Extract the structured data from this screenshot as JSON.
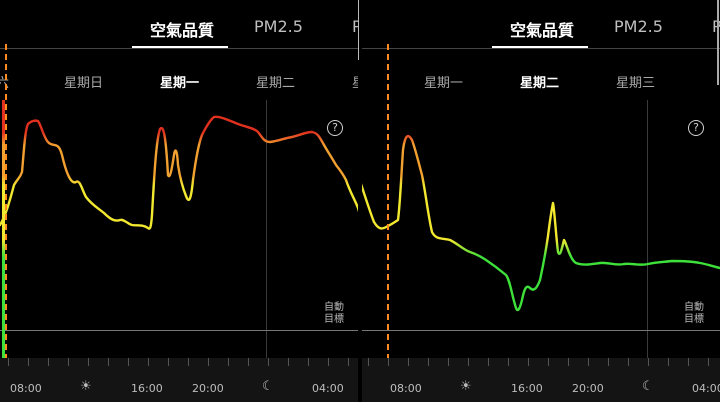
{
  "left": {
    "tabs": [
      {
        "label": "空氣品質",
        "active": true
      },
      {
        "label": "PM2.5",
        "active": false
      },
      {
        "label": "P",
        "active": false
      }
    ],
    "days": [
      {
        "label": "六",
        "active": false
      },
      {
        "label": "星期日",
        "active": false
      },
      {
        "label": "星期一",
        "active": true
      },
      {
        "label": "星期二",
        "active": false
      },
      {
        "label": "星",
        "active": false
      }
    ],
    "auto_target": [
      "自動",
      "目標"
    ],
    "help": "?",
    "axis": {
      "times": [
        "08:00",
        "16:00",
        "20:00",
        "04:00"
      ],
      "sun_icon": "☀",
      "moon_icon": "☾"
    }
  },
  "right": {
    "tabs": [
      {
        "label": "空氣品質",
        "active": true
      },
      {
        "label": "PM2.5",
        "active": false
      },
      {
        "label": "P",
        "active": false
      }
    ],
    "days": [
      {
        "label": "星期一",
        "active": false
      },
      {
        "label": "星期二",
        "active": true
      },
      {
        "label": "星期三",
        "active": false
      }
    ],
    "auto_target": [
      "自動",
      "目標"
    ],
    "help": "?",
    "axis": {
      "times": [
        "08:00",
        "16:00",
        "20:00",
        "04:00"
      ],
      "sun_icon": "☀",
      "moon_icon": "☾"
    }
  },
  "colors": {
    "good": "#3ee03a",
    "moderate": "#f2e830",
    "unhealthy_sensitive": "#f2a030",
    "unhealthy": "#e0301e",
    "now_marker": "#ff8a1e"
  }
}
